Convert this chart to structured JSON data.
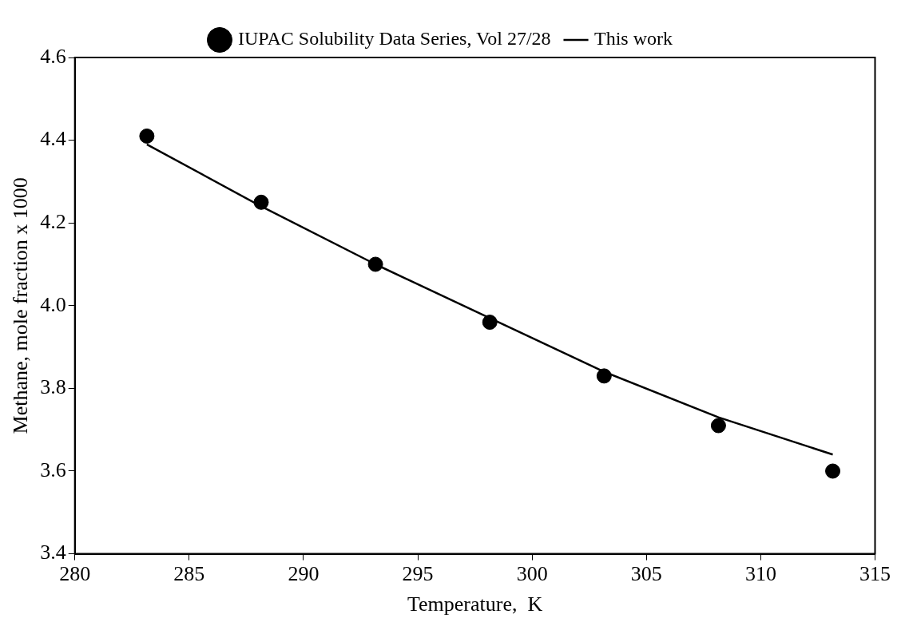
{
  "chart_data": {
    "type": "scatter",
    "xlabel": "Temperature,  K",
    "ylabel": "Methane, mole fraction x 1000",
    "xlim": [
      280,
      315
    ],
    "xticks": [
      280,
      285,
      290,
      295,
      300,
      305,
      310,
      315
    ],
    "ylim": [
      3.4,
      4.6
    ],
    "yticks": [
      {
        "value": 3.4,
        "label": "3.4"
      },
      {
        "value": 3.6,
        "label": "3.6"
      },
      {
        "value": 3.8,
        "label": "3.8"
      },
      {
        "value": 4.0,
        "label": "4.0"
      },
      {
        "value": 4.2,
        "label": "4.2"
      },
      {
        "value": 4.4,
        "label": "4.4"
      },
      {
        "value": 4.6,
        "label": "4.6"
      }
    ],
    "grid": false,
    "legend": "top",
    "series": [
      {
        "name": "IUPAC Solubility Data Series, Vol 27/28",
        "marker": "circle",
        "color": "#000000",
        "x": [
          283.15,
          288.15,
          293.15,
          298.15,
          303.15,
          308.15,
          313.15
        ],
        "values": [
          4.41,
          4.25,
          4.1,
          3.96,
          3.83,
          3.71,
          3.6
        ]
      },
      {
        "name": "This work",
        "type": "line",
        "marker": "none",
        "line_style": "solid",
        "color": "#000000",
        "x": [
          283.15,
          288.15,
          293.15,
          298.15,
          303.15,
          308.15,
          313.15
        ],
        "values": [
          4.39,
          4.24,
          4.1,
          3.97,
          3.84,
          3.73,
          3.64
        ]
      }
    ]
  }
}
